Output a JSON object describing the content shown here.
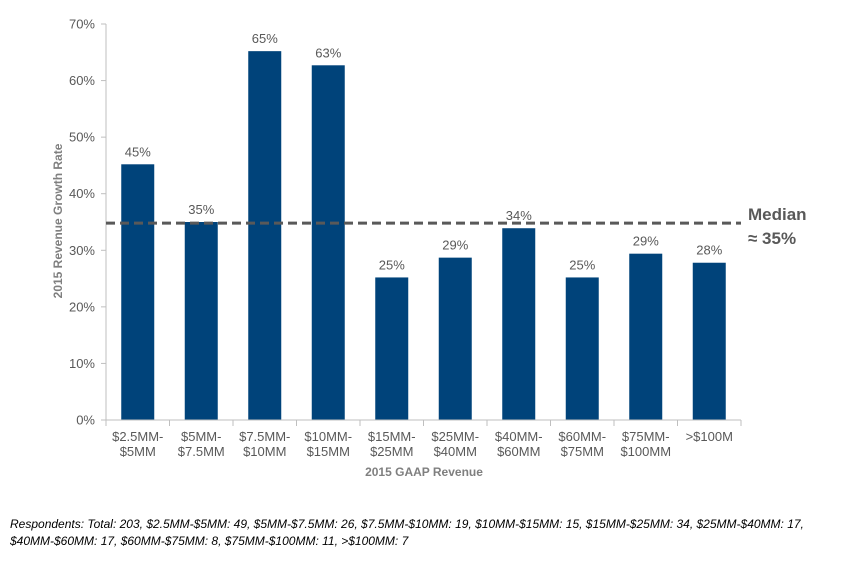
{
  "chart_data": {
    "type": "bar",
    "categories": [
      [
        "$2.5MM-",
        "$5MM"
      ],
      [
        "$5MM-",
        "$7.5MM"
      ],
      [
        "$7.5MM-",
        "$10MM"
      ],
      [
        "$10MM-",
        "$15MM"
      ],
      [
        "$15MM-",
        "$25MM"
      ],
      [
        "$25MM-",
        "$40MM"
      ],
      [
        "$40MM-",
        "$60MM"
      ],
      [
        "$60MM-",
        "$75MM"
      ],
      [
        "$75MM-",
        "$100MM"
      ],
      [
        ">$100M"
      ]
    ],
    "values": [
      45,
      35,
      65,
      63,
      25,
      29,
      34,
      25,
      29,
      28
    ],
    "bar_values_precise": [
      45.2,
      35.0,
      65.2,
      62.7,
      25.2,
      28.7,
      33.9,
      25.2,
      29.4,
      27.8
    ],
    "data_labels": [
      "45%",
      "35%",
      "65%",
      "63%",
      "25%",
      "29%",
      "34%",
      "25%",
      "29%",
      "28%"
    ],
    "xlabel": "2015 GAAP Revenue",
    "ylabel": "2015 Revenue Growth Rate",
    "ylim": [
      0,
      70
    ],
    "yticks": [
      "0%",
      "10%",
      "20%",
      "30%",
      "40%",
      "50%",
      "60%",
      "70%"
    ],
    "ytick_values": [
      0,
      10,
      20,
      30,
      40,
      50,
      60,
      70
    ],
    "grid": false,
    "bar_color": "#00437a",
    "median": {
      "value": 34.8,
      "label_line1": "Median",
      "label_line2": "≈ 35%",
      "color": "#595959"
    }
  },
  "footnote": "Respondents: Total: 203, $2.5MM-$5MM: 49, $5MM-$7.5MM: 26, $7.5MM-$10MM: 19, $10MM-$15MM: 15, $15MM-$25MM: 34, $25MM-$40MM: 17, $40MM-$60MM: 17, $60MM-$75MM: 8, $75MM-$100MM: 11, >$100MM: 7"
}
